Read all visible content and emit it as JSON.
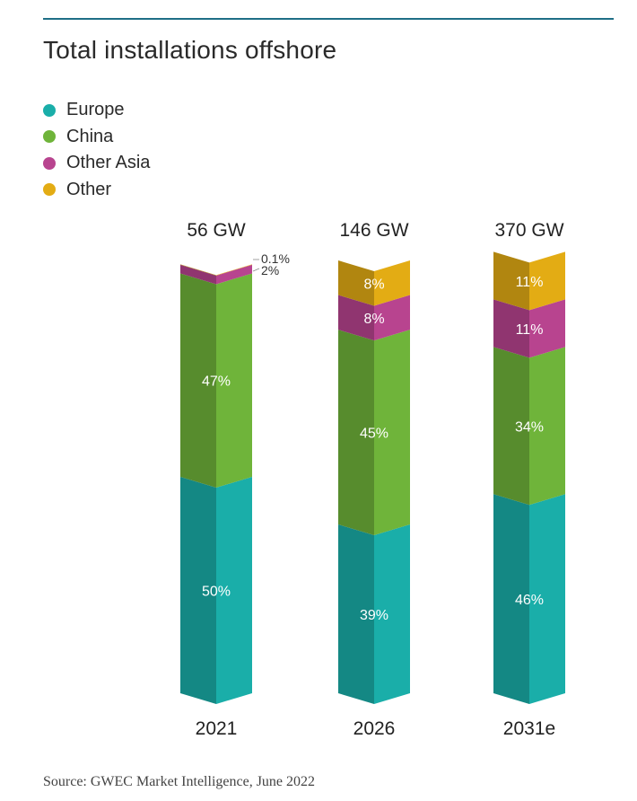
{
  "title": "Total installations offshore",
  "source": "Source: GWEC Market Intelligence, June 2022",
  "legend": [
    {
      "label": "Europe",
      "color": "#1aaea9"
    },
    {
      "label": "China",
      "color": "#6fb43a"
    },
    {
      "label": "Other Asia",
      "color": "#b8448f"
    },
    {
      "label": "Other",
      "color": "#e3ac14"
    }
  ],
  "chart_data": {
    "type": "bar",
    "stacked": true,
    "categories": [
      "2021",
      "2026",
      "2031e"
    ],
    "totals": [
      "56 GW",
      "146 GW",
      "370 GW"
    ],
    "series": [
      {
        "name": "Europe",
        "color": "#1aaea9",
        "values": [
          50,
          39,
          46
        ],
        "labels": [
          "50%",
          "39%",
          "46%"
        ]
      },
      {
        "name": "China",
        "color": "#6fb43a",
        "values": [
          47,
          45,
          34
        ],
        "labels": [
          "47%",
          "45%",
          "34%"
        ]
      },
      {
        "name": "Other Asia",
        "color": "#b8448f",
        "values": [
          2,
          8,
          11
        ],
        "labels": [
          "2%",
          "8%",
          "11%"
        ]
      },
      {
        "name": "Other",
        "color": "#e3ac14",
        "values": [
          0.1,
          8,
          11
        ],
        "labels": [
          "0.1%",
          "8%",
          "11%"
        ]
      }
    ],
    "ylim": [
      0,
      100
    ]
  }
}
